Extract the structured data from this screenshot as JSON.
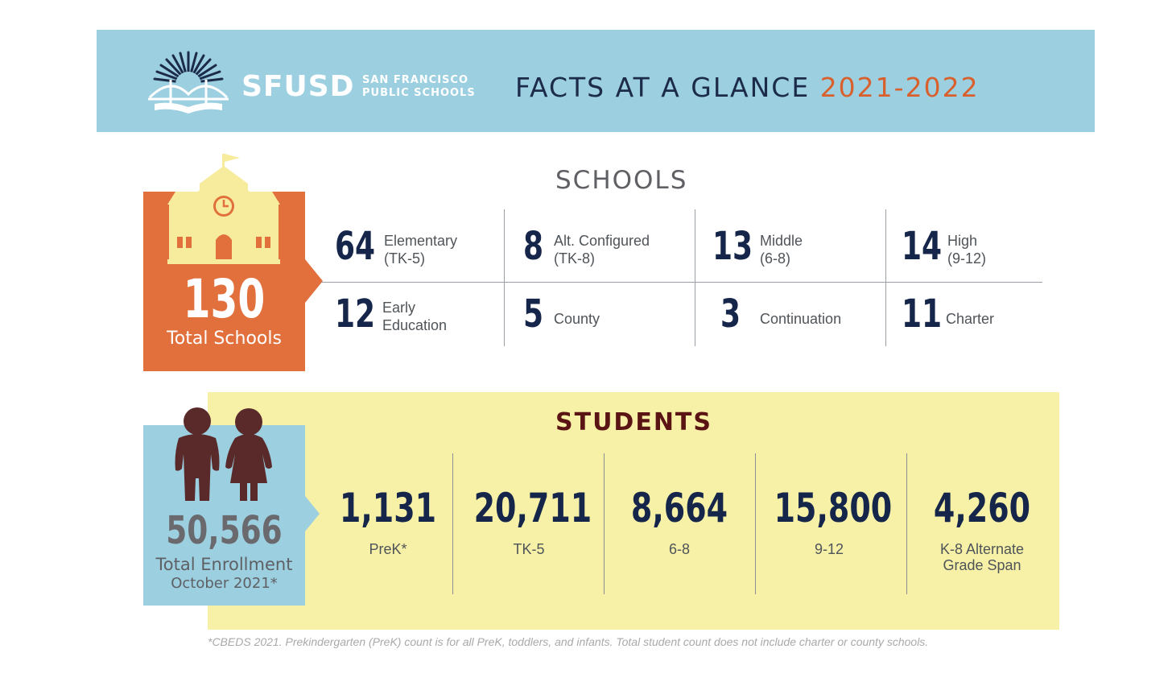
{
  "header": {
    "brand": "SFUSD",
    "brand_sub_line1": "SAN FRANCISCO",
    "brand_sub_line2": "PUBLIC SCHOOLS",
    "title": "FACTS AT A GLANCE",
    "year": "2021-2022",
    "colors": {
      "banner": "#9ccfe0",
      "title": "#1c2b4a",
      "year": "#d9602c"
    }
  },
  "schools": {
    "heading": "SCHOOLS",
    "total": "130",
    "total_label": "Total Schools",
    "items": [
      {
        "value": "64",
        "label_line1": "Elementary",
        "label_line2": "(TK-5)"
      },
      {
        "value": "8",
        "label_line1": "Alt. Configured",
        "label_line2": "(TK-8)"
      },
      {
        "value": "13",
        "label_line1": "Middle",
        "label_line2": "(6-8)"
      },
      {
        "value": "14",
        "label_line1": "High",
        "label_line2": "(9-12)"
      },
      {
        "value": "12",
        "label_line1": "Early",
        "label_line2": "Education"
      },
      {
        "value": "5",
        "label_line1": "County",
        "label_line2": ""
      },
      {
        "value": "3",
        "label_line1": "Continuation",
        "label_line2": ""
      },
      {
        "value": "11",
        "label_line1": "Charter",
        "label_line2": ""
      }
    ],
    "icon": "schoolhouse-icon",
    "color": "#e2703d"
  },
  "students": {
    "heading": "STUDENTS",
    "total": "50,566",
    "total_label": "Total Enrollment",
    "total_date": "October 2021*",
    "items": [
      {
        "value": "1,131",
        "label_line1": "PreK*",
        "label_line2": ""
      },
      {
        "value": "20,711",
        "label_line1": "TK-5",
        "label_line2": ""
      },
      {
        "value": "8,664",
        "label_line1": "6-8",
        "label_line2": ""
      },
      {
        "value": "15,800",
        "label_line1": "9-12",
        "label_line2": ""
      },
      {
        "value": "4,260",
        "label_line1": "K-8 Alternate",
        "label_line2": "Grade Span"
      }
    ],
    "icon": "students-icon",
    "panel_color": "#f7f1a7"
  },
  "footnote": "*CBEDS 2021. Prekindergarten (PreK) count is for all PreK, toddlers, and infants. Total student count does not include charter or county schools."
}
